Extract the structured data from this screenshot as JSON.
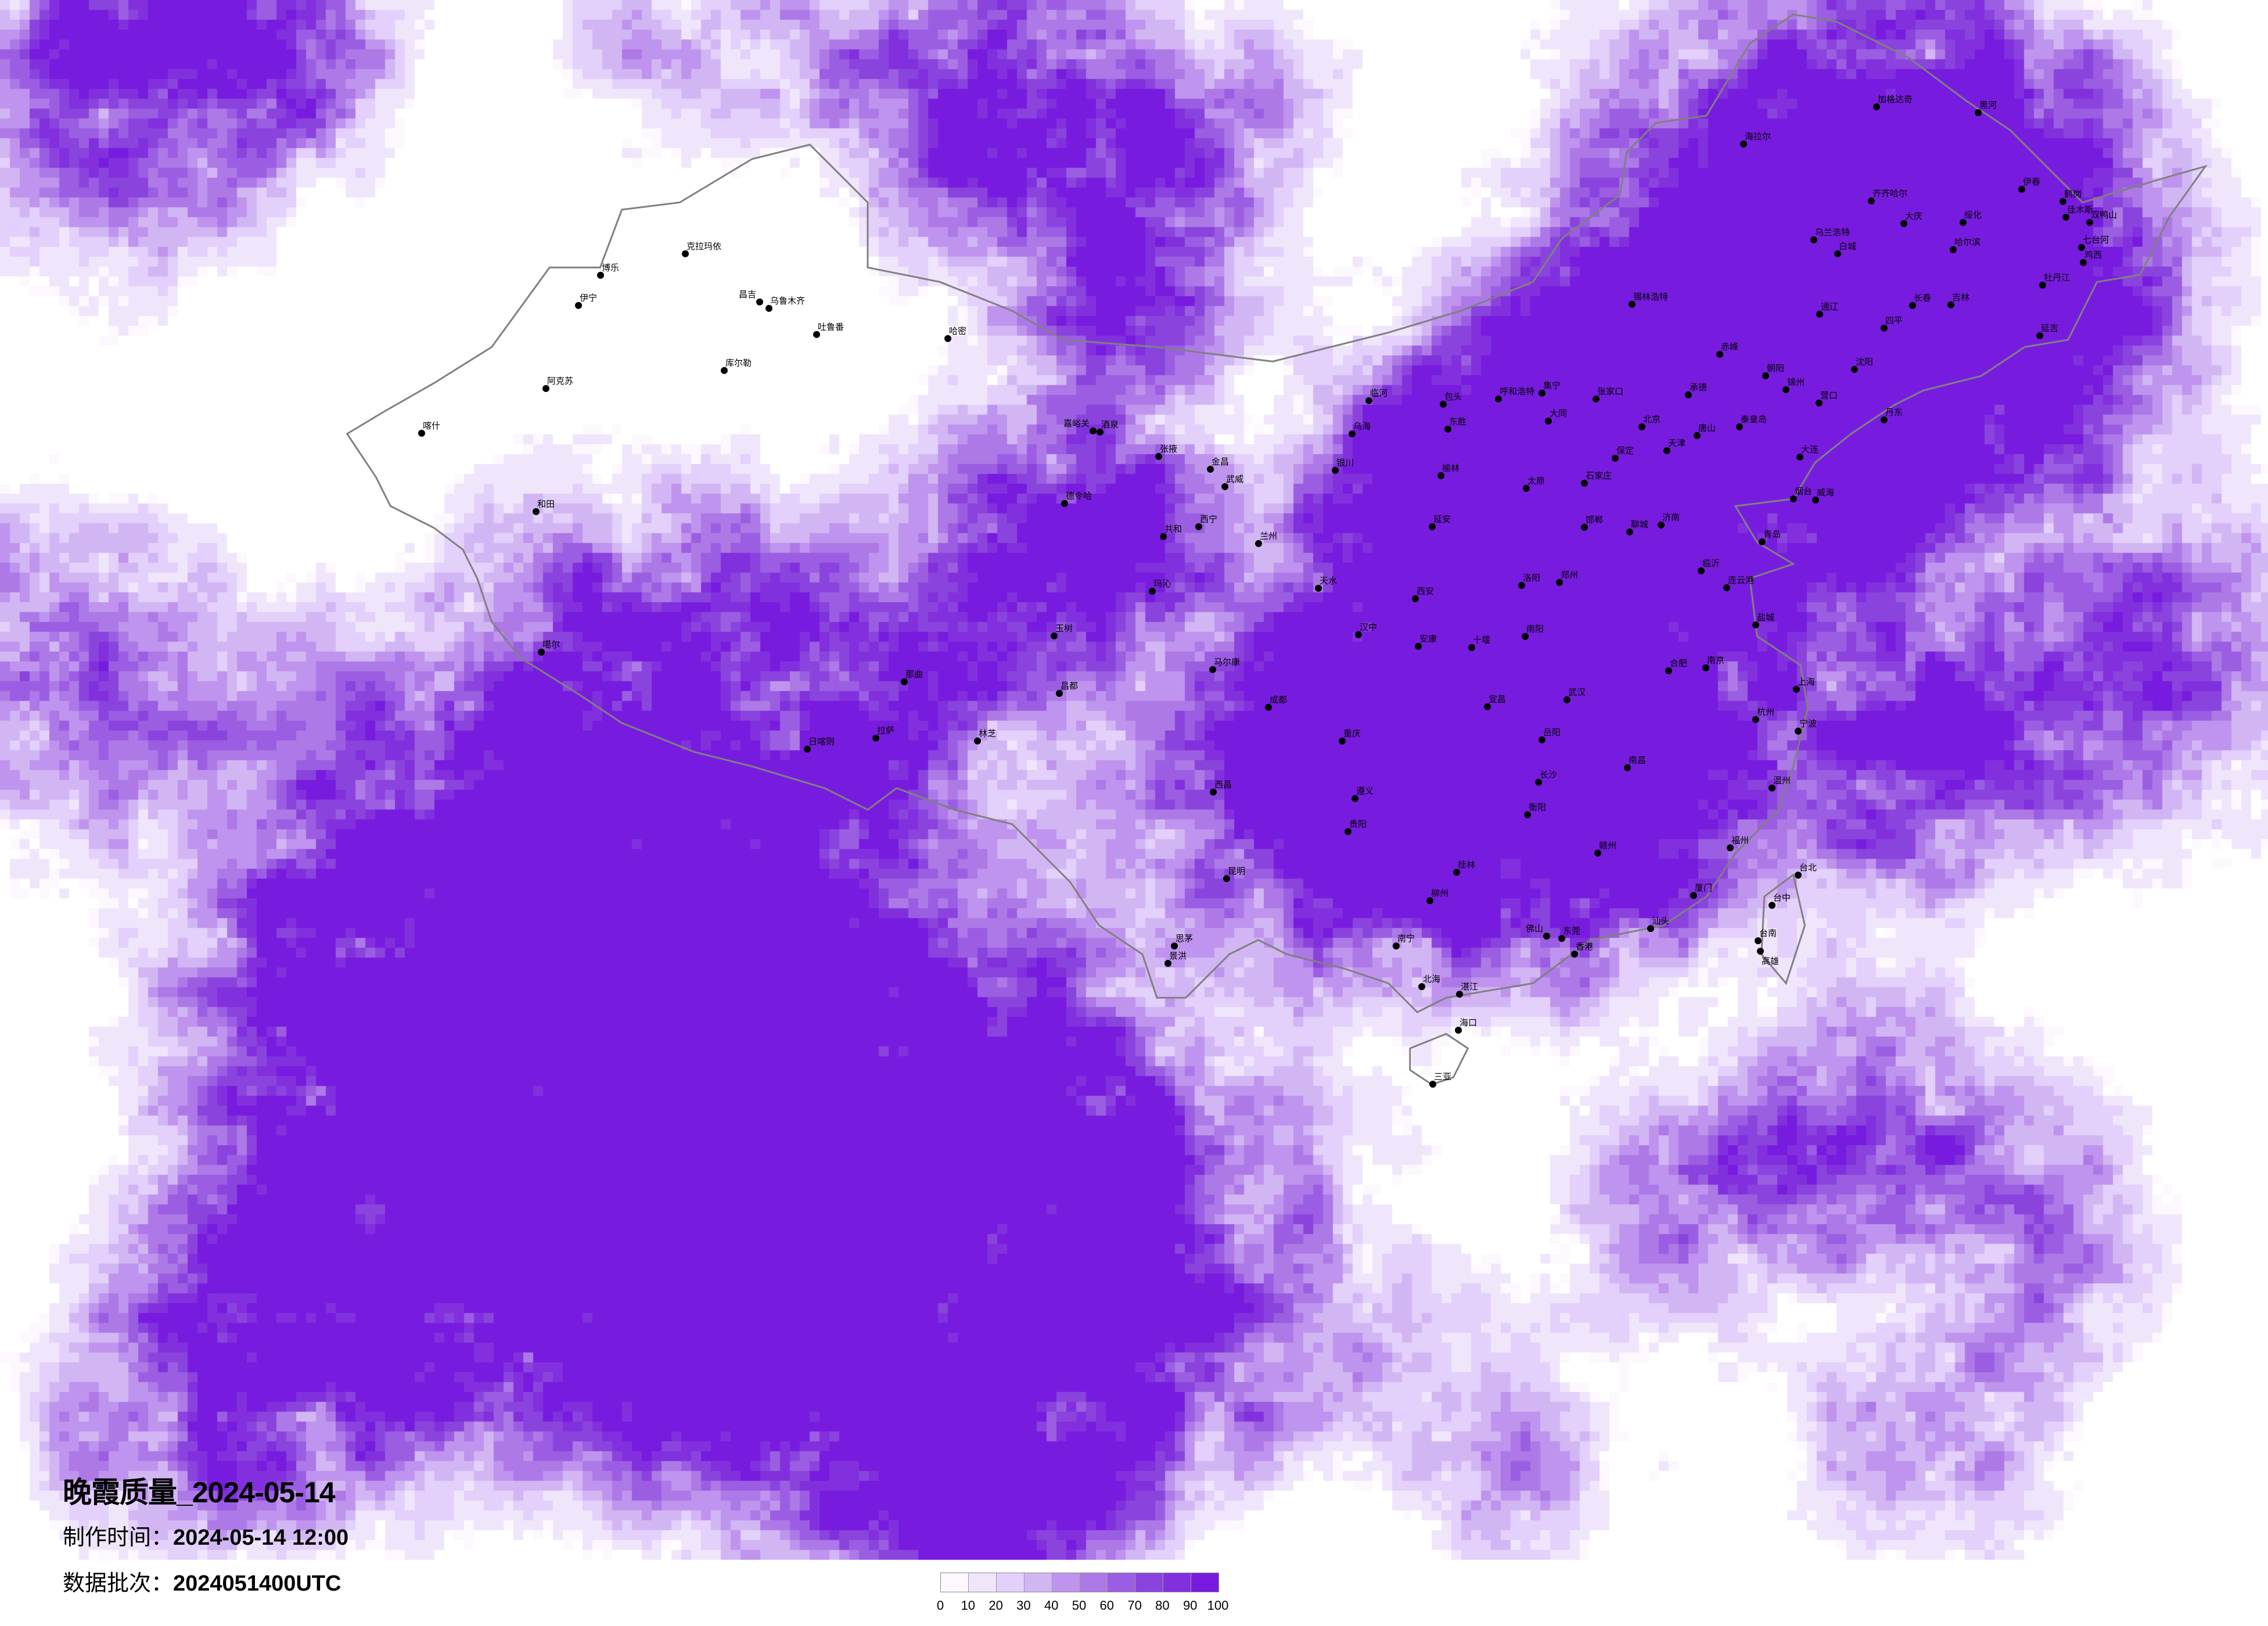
{
  "title": {
    "main": "晚霞质量_2024-05-14",
    "made_time_label": "制作时间：",
    "made_time_value": "2024-05-14 12:00",
    "batch_label": "数据批次：",
    "batch_value": "2024051400UTC"
  },
  "legend": {
    "ticks": [
      "0",
      "10",
      "20",
      "30",
      "40",
      "50",
      "60",
      "70",
      "80",
      "90",
      "100"
    ],
    "colors": [
      "#fdf8fe",
      "#f0e6fc",
      "#e3d0fb",
      "#d2b6f3",
      "#bf94ee",
      "#ad79e6",
      "#9b5ee3",
      "#8a44dd",
      "#8230de",
      "#771cdf"
    ]
  },
  "colors": {
    "border": "#808080",
    "city_dot": "#000000"
  },
  "cities": [
    "克拉玛依",
    "博乐",
    "伊宁",
    "昌吉",
    "乌鲁木齐",
    "吐鲁番",
    "哈密",
    "库尔勒",
    "阿克苏",
    "和田",
    "喀什",
    "噶尔",
    "嘉峪关",
    "酒泉",
    "张掖",
    "金昌",
    "武威",
    "德令哈",
    "西宁",
    "共和",
    "兰州",
    "银川",
    "玛沁",
    "玉树",
    "那曲",
    "昌都",
    "拉萨",
    "日喀则",
    "林芝",
    "马尔康",
    "天水",
    "汉中",
    "临河",
    "乌海",
    "包头",
    "呼和浩特",
    "集宁",
    "张家口",
    "大同",
    "东胜",
    "北京",
    "承德",
    "唐山",
    "天津",
    "保定",
    "石家庄",
    "太原",
    "秦皇岛",
    "大连",
    "烟台",
    "威海",
    "济南",
    "青岛",
    "郑州",
    "洛阳",
    "西安",
    "合肥",
    "南京",
    "上海",
    "沈阳",
    "营口",
    "丹东",
    "锦州",
    "朝阳",
    "邯郸",
    "聊城",
    "临沂",
    "连云港",
    "盐城",
    "南阳",
    "十堰",
    "安康",
    "延安",
    "榆林",
    "海拉尔",
    "加格达奇",
    "黑河",
    "齐齐哈尔",
    "大庆",
    "哈尔滨",
    "伊春",
    "鹤岗",
    "佳木斯",
    "双鸭山",
    "七台河",
    "鸡西",
    "牡丹江",
    "长春",
    "吉林",
    "延吉",
    "锡林浩特",
    "通辽",
    "赤峰",
    "乌兰浩特",
    "白城",
    "四平",
    "绥化",
    "成都",
    "重庆",
    "贵阳",
    "昆明",
    "长沙",
    "武汉",
    "南昌",
    "杭州",
    "福州",
    "佛山",
    "东莞",
    "香港",
    "南宁",
    "海口",
    "三亚",
    "台北",
    "台中",
    "台南",
    "高雄",
    "厦门",
    "桂林",
    "柳州",
    "西昌",
    "遵义",
    "宜昌",
    "岳阳",
    "衡阳",
    "赣州",
    "温州",
    "宁波",
    "汕头",
    "湛江",
    "北海",
    "景洪",
    "思茅"
  ]
}
